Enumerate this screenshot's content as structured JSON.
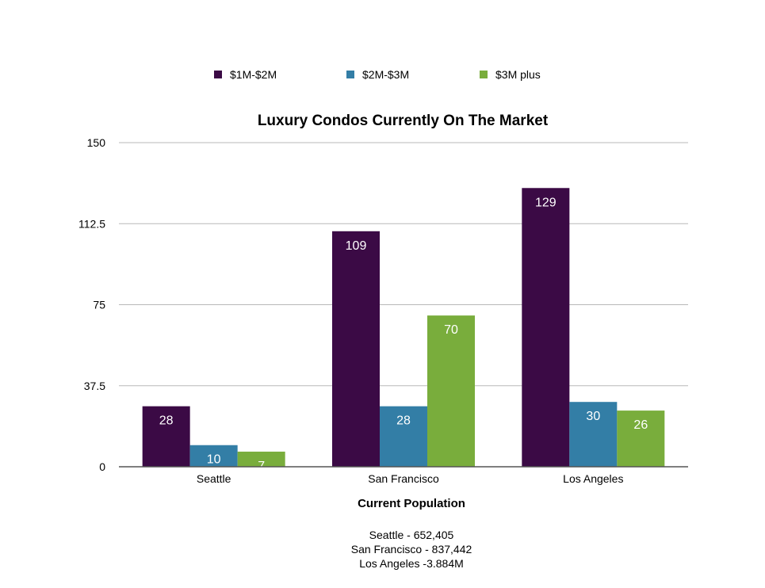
{
  "chart_data": {
    "type": "bar",
    "title": "Luxury Condos Currently On The Market",
    "categories": [
      "Seattle",
      "San Francisco",
      "Los Angeles"
    ],
    "series": [
      {
        "name": "$1M-$2M",
        "color": "#3b0a45",
        "values": [
          28,
          109,
          129
        ]
      },
      {
        "name": "$2M-$3M",
        "color": "#337ea6",
        "values": [
          10,
          28,
          30
        ]
      },
      {
        "name": "$3M plus",
        "color": "#79ad3c",
        "values": [
          7,
          70,
          26
        ]
      }
    ],
    "ylim": [
      0,
      150
    ],
    "yticks": [
      "0",
      "37.5",
      "75",
      "112.5",
      "150"
    ],
    "xlabel": "Current Population",
    "ylabel": "",
    "legend": "top",
    "grid": true
  },
  "population_notes": [
    "Seattle - 652,405",
    "San Francisco - 837,442",
    "Los Angeles -3.884M"
  ]
}
